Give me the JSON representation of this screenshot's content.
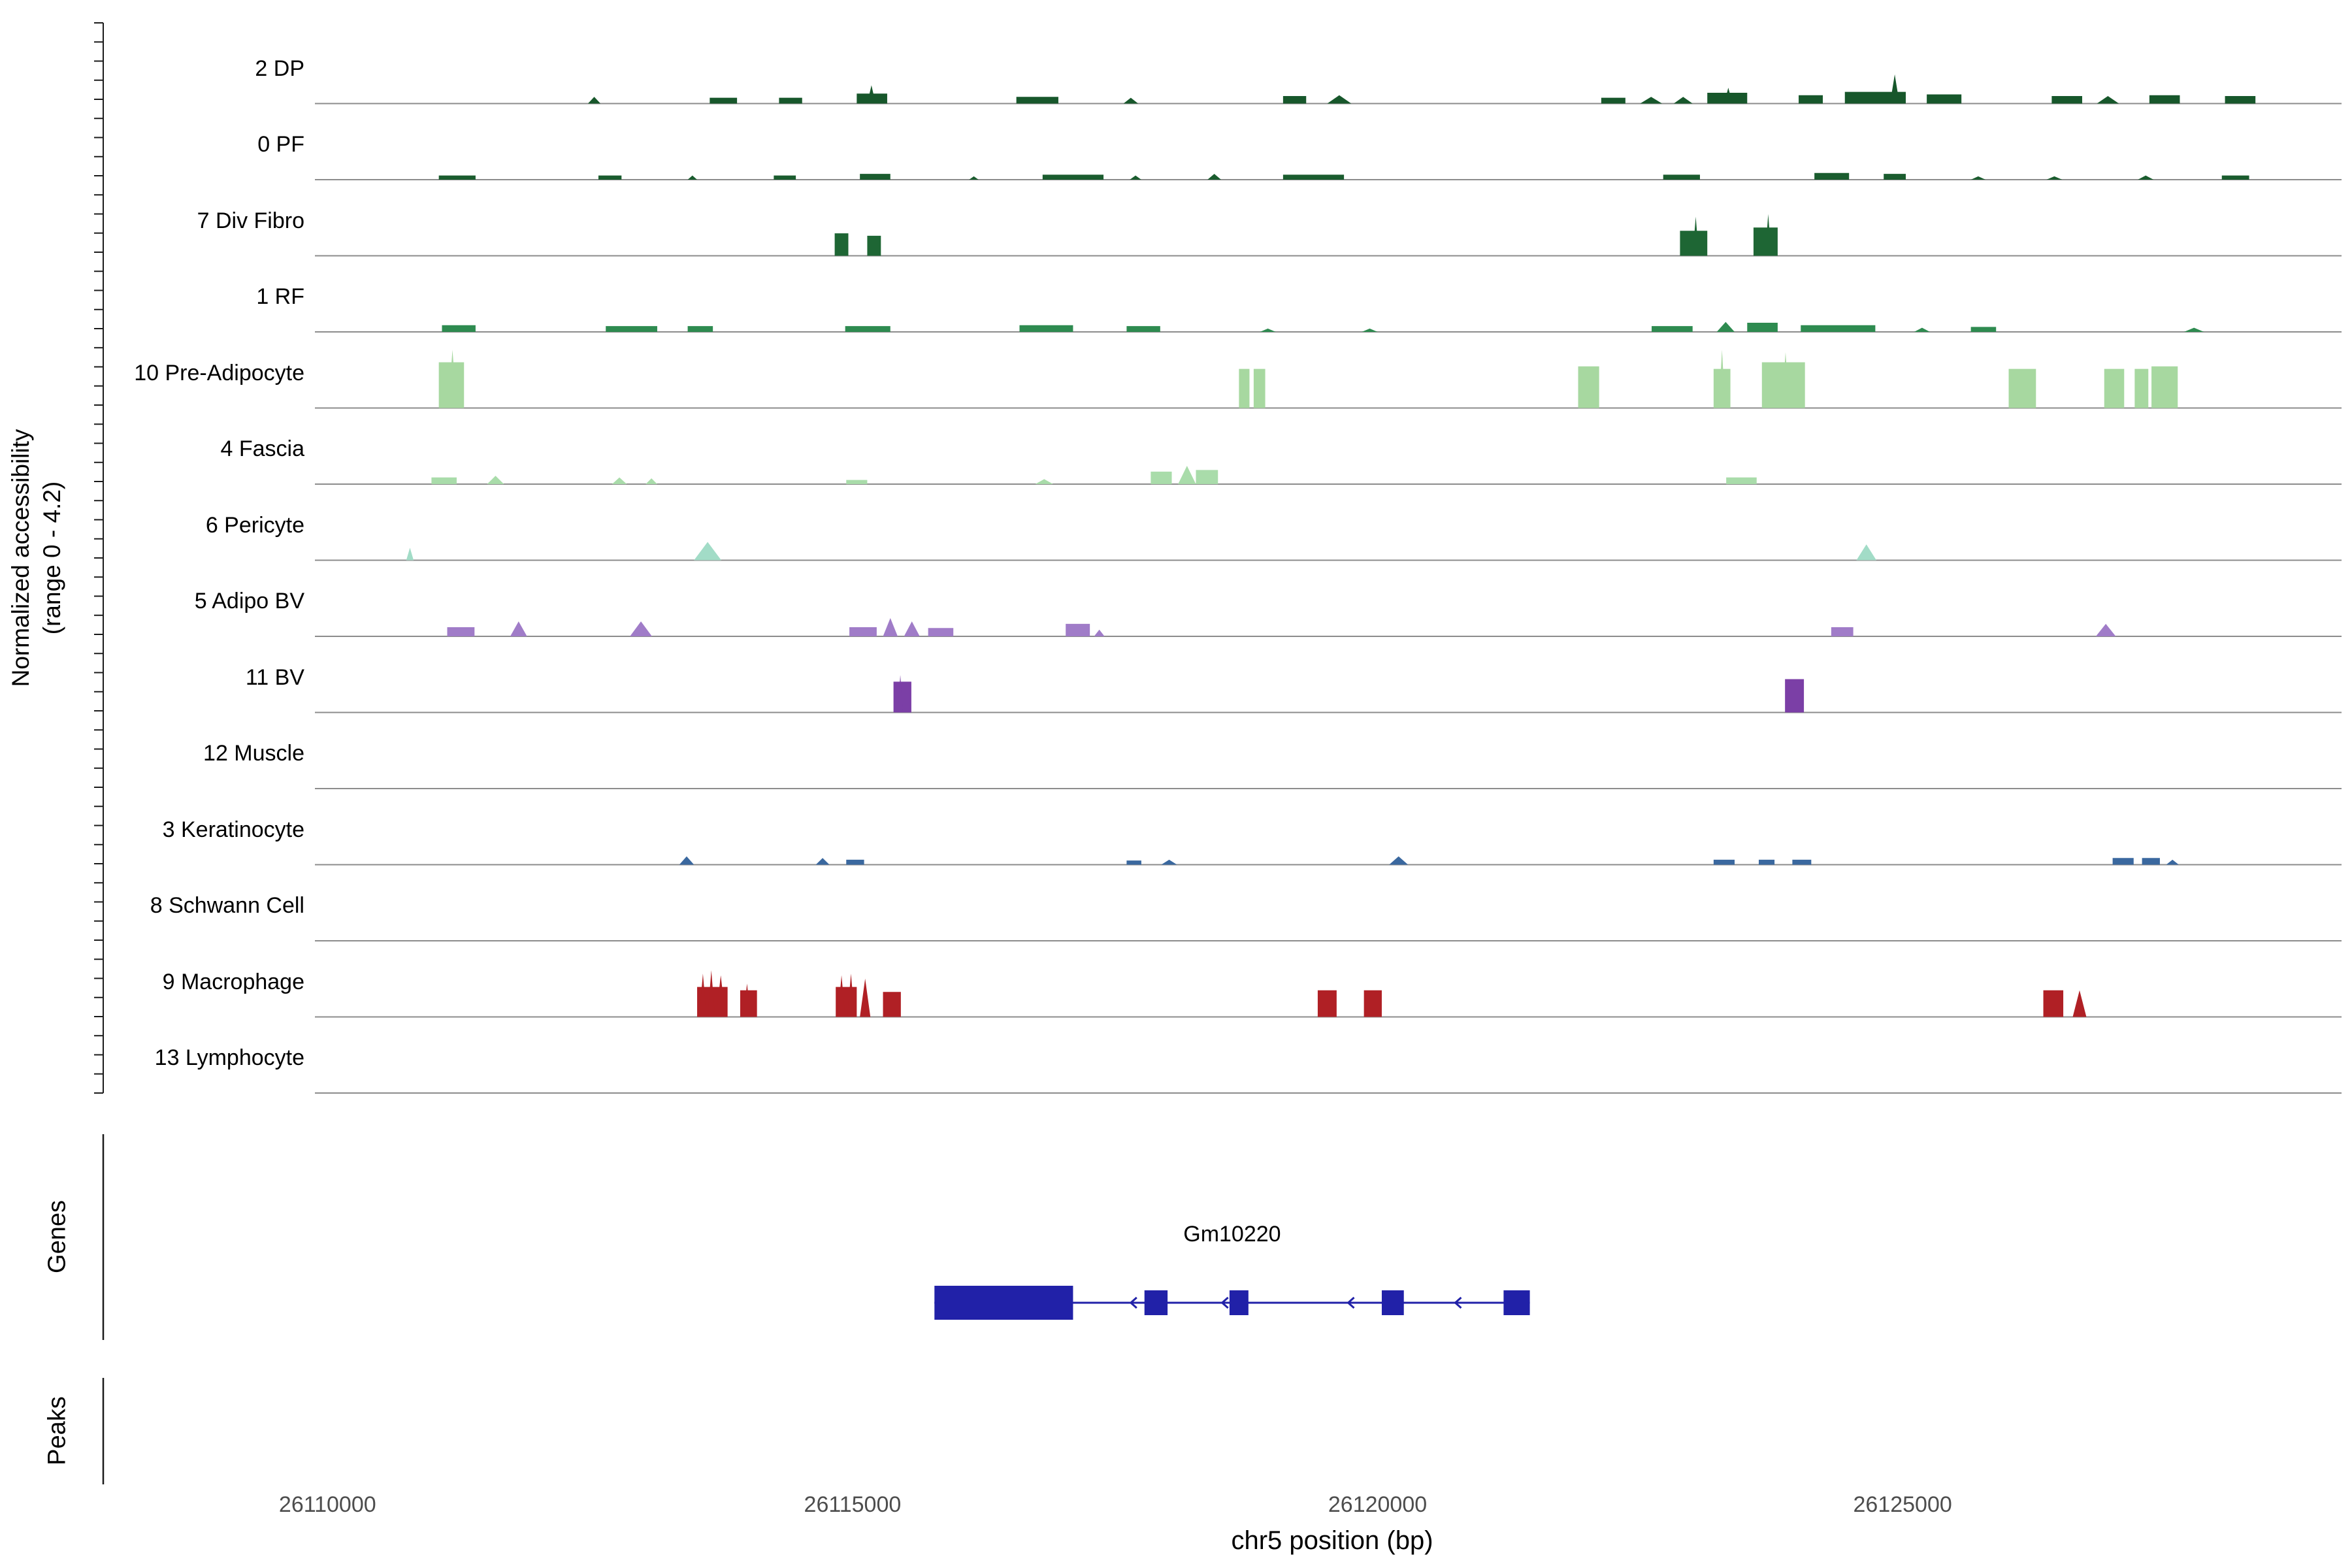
{
  "chart_data": {
    "type": "area",
    "y_axis": {
      "label_line1": "Normalized accessibility",
      "label_line2": "(range 0 - 4.2)",
      "range": [
        0,
        4.2
      ]
    },
    "x_axis": {
      "title": "chr5 position (bp)",
      "chromosome": "chr5",
      "ticks": [
        26110000,
        26115000,
        26120000,
        26125000
      ],
      "xlim": [
        26109880,
        26129180
      ]
    },
    "sections": {
      "genes_label": "Genes",
      "peaks_label": "Peaks"
    },
    "tracks": [
      {
        "label": "2 DP",
        "color": "#17572b",
        "peaks": [
          [
            26112480,
            26112600,
            0.4
          ],
          [
            26113640,
            26113900,
            0.35,
            "b"
          ],
          [
            26114300,
            26114520,
            0.35,
            "b"
          ],
          [
            26115040,
            26115330,
            0.6,
            "b"
          ],
          [
            26115140,
            26115220,
            1.1
          ],
          [
            26116560,
            26116960,
            0.4,
            "b"
          ],
          [
            26117580,
            26117720,
            0.35
          ],
          [
            26119100,
            26119320,
            0.45,
            "b"
          ],
          [
            26119520,
            26119750,
            0.5
          ],
          [
            26122130,
            26122360,
            0.35,
            "b"
          ],
          [
            26122500,
            26122710,
            0.4
          ],
          [
            26122820,
            26123000,
            0.4
          ],
          [
            26123140,
            26123520,
            0.65,
            "b"
          ],
          [
            26123300,
            26123380,
            0.95
          ],
          [
            26124010,
            26124240,
            0.5,
            "b"
          ],
          [
            26124450,
            26125030,
            0.7,
            "b"
          ],
          [
            26124880,
            26124970,
            1.75
          ],
          [
            26125230,
            26125560,
            0.55,
            "b"
          ],
          [
            26126420,
            26126710,
            0.45,
            "b"
          ],
          [
            26126850,
            26127060,
            0.45
          ],
          [
            26127350,
            26127640,
            0.5,
            "b"
          ],
          [
            26128070,
            26128360,
            0.45,
            "b"
          ]
        ]
      },
      {
        "label": "0 PF",
        "color": "#1a5c2e",
        "peaks": [
          [
            26111060,
            26111410,
            0.25,
            "b"
          ],
          [
            26112580,
            26112800,
            0.25,
            "b"
          ],
          [
            26113430,
            26113520,
            0.25
          ],
          [
            26114250,
            26114460,
            0.25,
            "b"
          ],
          [
            26115070,
            26115360,
            0.35,
            "b"
          ],
          [
            26116110,
            26116200,
            0.2
          ],
          [
            26116810,
            26117390,
            0.3,
            "b"
          ],
          [
            26117640,
            26117750,
            0.25
          ],
          [
            26118380,
            26118510,
            0.35
          ],
          [
            26119100,
            26119680,
            0.3,
            "b"
          ],
          [
            26122720,
            26123070,
            0.3,
            "b"
          ],
          [
            26124160,
            26124490,
            0.4,
            "b"
          ],
          [
            26124820,
            26125030,
            0.35,
            "b"
          ],
          [
            26125650,
            26125790,
            0.2
          ],
          [
            26126370,
            26126520,
            0.2
          ],
          [
            26127240,
            26127390,
            0.25
          ],
          [
            26128040,
            26128300,
            0.25,
            "b"
          ]
        ]
      },
      {
        "label": "7 Div Fibro",
        "color": "#1e6634",
        "peaks": [
          [
            26114830,
            26114960,
            1.35,
            "b"
          ],
          [
            26115140,
            26115270,
            1.2,
            "b"
          ],
          [
            26122880,
            26123140,
            1.5,
            "b"
          ],
          [
            26123000,
            26123060,
            2.35
          ],
          [
            26123580,
            26123810,
            1.7,
            "b"
          ],
          [
            26123690,
            26123750,
            2.5
          ]
        ]
      },
      {
        "label": "1 RF",
        "color": "#2e8b50",
        "peaks": [
          [
            26111090,
            26111410,
            0.4,
            "b"
          ],
          [
            26112650,
            26113140,
            0.35,
            "b"
          ],
          [
            26113430,
            26113670,
            0.35,
            "b"
          ],
          [
            26114930,
            26115360,
            0.35,
            "b"
          ],
          [
            26116590,
            26117100,
            0.4,
            "b"
          ],
          [
            26117610,
            26117930,
            0.35,
            "b"
          ],
          [
            26118880,
            26119030,
            0.2
          ],
          [
            26119850,
            26120000,
            0.2
          ],
          [
            26122610,
            26123000,
            0.35,
            "b"
          ],
          [
            26123230,
            26123400,
            0.6
          ],
          [
            26123520,
            26123810,
            0.55,
            "b"
          ],
          [
            26124030,
            26124740,
            0.4,
            "b"
          ],
          [
            26125110,
            26125260,
            0.25
          ],
          [
            26125650,
            26125890,
            0.3,
            "b"
          ],
          [
            26127680,
            26127870,
            0.25
          ]
        ]
      },
      {
        "label": "10 Pre-Adipocyte",
        "color": "#a7d8a0",
        "peaks": [
          [
            26111060,
            26111300,
            2.75,
            "b"
          ],
          [
            26111150,
            26111230,
            3.5
          ],
          [
            26118680,
            26118780,
            2.35,
            "b"
          ],
          [
            26118820,
            26118930,
            2.35,
            "b"
          ],
          [
            26121910,
            26122110,
            2.5,
            "b"
          ],
          [
            26123200,
            26123360,
            2.35,
            "b"
          ],
          [
            26123250,
            26123310,
            3.5
          ],
          [
            26123660,
            26124070,
            2.75,
            "b"
          ],
          [
            26123850,
            26123920,
            3.35
          ],
          [
            26126010,
            26126270,
            2.35,
            "b"
          ],
          [
            26126920,
            26127110,
            2.35,
            "b"
          ],
          [
            26127210,
            26127340,
            2.35,
            "b"
          ],
          [
            26127370,
            26127620,
            2.5,
            "b"
          ]
        ]
      },
      {
        "label": "4 Fascia",
        "color": "#a9dcaa",
        "peaks": [
          [
            26110990,
            26111230,
            0.4,
            "b"
          ],
          [
            26111520,
            26111680,
            0.5
          ],
          [
            26112710,
            26112850,
            0.4
          ],
          [
            26113030,
            26113140,
            0.35
          ],
          [
            26114940,
            26115140,
            0.25,
            "b"
          ],
          [
            26116740,
            26116910,
            0.3
          ],
          [
            26117840,
            26118040,
            0.75,
            "b"
          ],
          [
            26118100,
            26118270,
            1.1
          ],
          [
            26118270,
            26118480,
            0.85,
            "b"
          ],
          [
            26123320,
            26123610,
            0.4,
            "b"
          ]
        ]
      },
      {
        "label": "6 Pericyte",
        "color": "#a2dcc7",
        "peaks": [
          [
            26110750,
            26110820,
            0.75
          ],
          [
            26113490,
            26113750,
            1.1
          ],
          [
            26124560,
            26124750,
            0.95
          ]
        ]
      },
      {
        "label": "5 Adipo BV",
        "color": "#a07cc8",
        "peaks": [
          [
            26111140,
            26111400,
            0.55,
            "b"
          ],
          [
            26111740,
            26111900,
            0.9
          ],
          [
            26112880,
            26113090,
            0.9
          ],
          [
            26114970,
            26115230,
            0.55,
            "b"
          ],
          [
            26115290,
            26115430,
            1.1
          ],
          [
            26115490,
            26115640,
            0.9
          ],
          [
            26115720,
            26115960,
            0.5,
            "b"
          ],
          [
            26117030,
            26117260,
            0.75,
            "b"
          ],
          [
            26117300,
            26117400,
            0.4
          ],
          [
            26124320,
            26124530,
            0.55,
            "b"
          ],
          [
            26126840,
            26127030,
            0.75
          ]
        ]
      },
      {
        "label": "11 BV",
        "color": "#7b3fa6",
        "peaks": [
          [
            26115390,
            26115560,
            1.85,
            "b"
          ],
          [
            26115430,
            26115480,
            2.25
          ],
          [
            26123880,
            26124060,
            2.0,
            "b"
          ]
        ]
      },
      {
        "label": "12 Muscle",
        "color": "#8d56b5",
        "peaks": []
      },
      {
        "label": "3 Keratinocyte",
        "color": "#3a689f",
        "peaks": [
          [
            26113350,
            26113490,
            0.5
          ],
          [
            26114650,
            26114780,
            0.4
          ],
          [
            26114940,
            26115110,
            0.3,
            "b"
          ],
          [
            26117610,
            26117750,
            0.25,
            "b"
          ],
          [
            26117940,
            26118090,
            0.3
          ],
          [
            26120110,
            26120290,
            0.5
          ],
          [
            26123200,
            26123400,
            0.3,
            "b"
          ],
          [
            26123630,
            26123780,
            0.3,
            "b"
          ],
          [
            26123950,
            26124130,
            0.3,
            "b"
          ],
          [
            26127000,
            26127200,
            0.4,
            "b"
          ],
          [
            26127280,
            26127450,
            0.4,
            "b"
          ],
          [
            26127510,
            26127630,
            0.3
          ]
        ]
      },
      {
        "label": "8 Schwann Cell",
        "color": "#4a7ab5",
        "peaks": []
      },
      {
        "label": "9 Macrophage",
        "color": "#b02025",
        "peaks": [
          [
            26113520,
            26113810,
            1.8,
            "b"
          ],
          [
            26113540,
            26113610,
            2.6
          ],
          [
            26113620,
            26113690,
            2.8
          ],
          [
            26113700,
            26113790,
            2.5
          ],
          [
            26113930,
            26114090,
            1.6,
            "b"
          ],
          [
            26113960,
            26114030,
            2.0
          ],
          [
            26114840,
            26115040,
            1.8,
            "b"
          ],
          [
            26114860,
            26114930,
            2.5
          ],
          [
            26114950,
            26115020,
            2.6
          ],
          [
            26115070,
            26115170,
            2.3
          ],
          [
            26115290,
            26115460,
            1.5,
            "b"
          ],
          [
            26119430,
            26119610,
            1.6,
            "b"
          ],
          [
            26119870,
            26120040,
            1.6,
            "b"
          ],
          [
            26126340,
            26126530,
            1.6,
            "b"
          ],
          [
            26126620,
            26126750,
            1.6
          ]
        ]
      },
      {
        "label": "13 Lymphocyte",
        "color": "#c24b4b",
        "peaks": []
      }
    ],
    "genes": [
      {
        "name": "Gm10220",
        "strand": "-",
        "start": 26115780,
        "end": 26121450,
        "color": "#2121a8",
        "exons": [
          [
            26115780,
            26117100
          ],
          [
            26117780,
            26118000
          ],
          [
            26118590,
            26118770
          ],
          [
            26120040,
            26120250
          ],
          [
            26121200,
            26121450
          ]
        ],
        "arrows": [
          26117650,
          26118520,
          26119720,
          26120740
        ]
      }
    ],
    "peaks": []
  }
}
